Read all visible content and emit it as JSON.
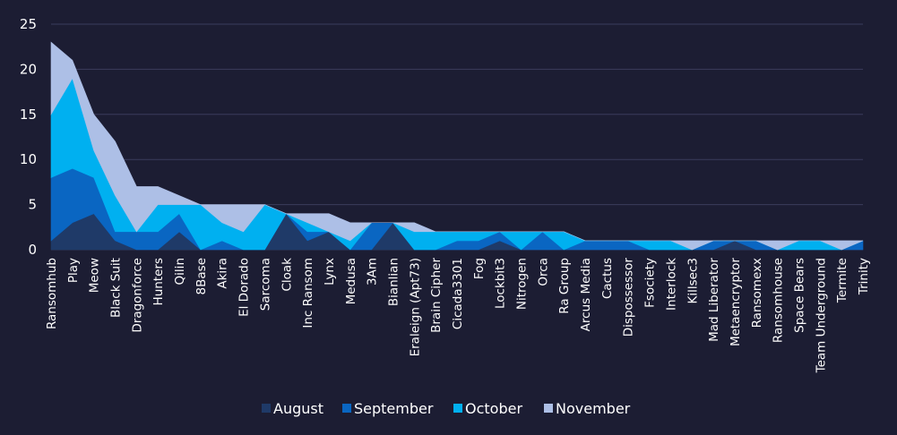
{
  "chart_data": {
    "type": "area",
    "stacked": true,
    "categories": [
      "Ransomhub",
      "Play",
      "Meow",
      "Black Suit",
      "Dragonforce",
      "Hunters",
      "Qilin",
      "8Base",
      "Akira",
      "El Dorado",
      "Sarcoma",
      "Cloak",
      "Inc Ransom",
      "Lynx",
      "Medusa",
      "3Am",
      "Bianlian",
      "Eraleign (Apt73)",
      "Brain Cipher",
      "Cicada3301",
      "Fog",
      "Lockbit3",
      "Nitrogen",
      "Orca",
      "Ra Group",
      "Arcus Media",
      "Cactus",
      "Dispossessor",
      "Fsociety",
      "Interlock",
      "Killsec3",
      "Mad Liberator",
      "Metaencryptor",
      "Ransomexx",
      "Ransomhouse",
      "Space Bears",
      "Team Underground",
      "Termite",
      "Trinity"
    ],
    "series": [
      {
        "name": "August",
        "color": "#1f3a68",
        "values": [
          1,
          3,
          4,
          1,
          0,
          0,
          2,
          0,
          0,
          0,
          0,
          4,
          1,
          2,
          0,
          0,
          3,
          0,
          0,
          0,
          0,
          1,
          0,
          0,
          0,
          0,
          0,
          0,
          0,
          0,
          0,
          0,
          1,
          0,
          0,
          0,
          0,
          0,
          0
        ]
      },
      {
        "name": "September",
        "color": "#0a66c2",
        "values": [
          7,
          6,
          4,
          1,
          2,
          2,
          2,
          0,
          1,
          0,
          0,
          0,
          1,
          0,
          0,
          3,
          0,
          0,
          0,
          1,
          1,
          1,
          0,
          2,
          0,
          1,
          1,
          1,
          0,
          0,
          0,
          1,
          0,
          1,
          0,
          0,
          0,
          0,
          1
        ]
      },
      {
        "name": "October",
        "color": "#00b0f0",
        "values": [
          7,
          10,
          3,
          4,
          0,
          3,
          1,
          5,
          2,
          2,
          5,
          0,
          1,
          0,
          1,
          0,
          0,
          2,
          2,
          1,
          1,
          0,
          2,
          0,
          2,
          0,
          0,
          0,
          1,
          1,
          0,
          0,
          0,
          0,
          0,
          1,
          1,
          0,
          0
        ]
      },
      {
        "name": "November",
        "color": "#adbfe6",
        "values": [
          8,
          2,
          4,
          6,
          5,
          2,
          1,
          0,
          2,
          3,
          0,
          0,
          1,
          2,
          2,
          0,
          0,
          1,
          0,
          0,
          0,
          0,
          0,
          0,
          0,
          0,
          0,
          0,
          0,
          0,
          1,
          0,
          0,
          0,
          1,
          0,
          0,
          1,
          0
        ]
      }
    ],
    "y_ticks": [
      "0",
      "5",
      "10",
      "15",
      "20",
      "25"
    ],
    "ylim": [
      0,
      25
    ],
    "grid": true,
    "legend_position": "bottom"
  }
}
